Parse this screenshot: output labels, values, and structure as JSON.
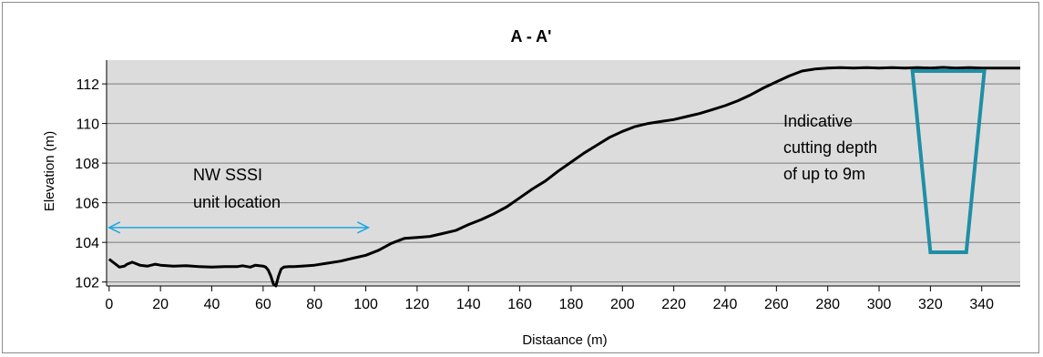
{
  "chart_data": {
    "type": "line",
    "title": "A - A'",
    "xlabel": "Distaance (m)",
    "ylabel": "Elevation (m)",
    "xlim": [
      -1,
      355
    ],
    "ylim": [
      101.8,
      113.2
    ],
    "x_ticks": [
      0,
      20,
      40,
      60,
      80,
      100,
      120,
      140,
      160,
      180,
      200,
      220,
      240,
      260,
      280,
      300,
      320,
      340
    ],
    "y_ticks": [
      102,
      104,
      106,
      108,
      110,
      112
    ],
    "grid": "horizontal",
    "background": "#dcdcdc",
    "line_color": "#000000",
    "series": [
      {
        "name": "",
        "x": [
          0,
          2,
          4,
          6,
          7,
          9,
          10,
          12,
          15,
          18,
          20,
          25,
          30,
          35,
          40,
          45,
          50,
          52,
          55,
          57,
          60,
          61,
          62,
          63,
          64,
          65,
          66,
          67,
          68,
          70,
          72,
          75,
          80,
          85,
          90,
          95,
          100,
          105,
          110,
          115,
          120,
          125,
          130,
          135,
          140,
          145,
          150,
          155,
          160,
          165,
          170,
          175,
          180,
          185,
          190,
          195,
          200,
          205,
          210,
          215,
          220,
          225,
          230,
          235,
          240,
          245,
          250,
          255,
          260,
          265,
          270,
          275,
          280,
          285,
          290,
          295,
          300,
          305,
          310,
          315,
          320,
          325,
          330,
          335,
          340,
          345,
          350,
          355
        ],
        "y": [
          103.15,
          102.95,
          102.75,
          102.8,
          102.9,
          103.0,
          102.95,
          102.85,
          102.8,
          102.9,
          102.85,
          102.8,
          102.82,
          102.78,
          102.75,
          102.78,
          102.78,
          102.82,
          102.75,
          102.85,
          102.8,
          102.75,
          102.6,
          102.3,
          101.9,
          101.8,
          102.3,
          102.65,
          102.75,
          102.78,
          102.78,
          102.8,
          102.85,
          102.95,
          103.05,
          103.2,
          103.35,
          103.6,
          103.95,
          104.2,
          104.25,
          104.3,
          104.45,
          104.6,
          104.9,
          105.15,
          105.45,
          105.8,
          106.25,
          106.7,
          107.1,
          107.6,
          108.05,
          108.5,
          108.9,
          109.3,
          109.6,
          109.85,
          110.0,
          110.1,
          110.2,
          110.35,
          110.5,
          110.7,
          110.9,
          111.15,
          111.45,
          111.8,
          112.1,
          112.4,
          112.65,
          112.75,
          112.8,
          112.82,
          112.8,
          112.82,
          112.8,
          112.82,
          112.8,
          112.82,
          112.8,
          112.83,
          112.8,
          112.82,
          112.8,
          112.8,
          112.8,
          112.8
        ]
      }
    ],
    "annotations": [
      {
        "text_lines": [
          "NW SSSI",
          "unit location"
        ],
        "arrow_from_x": 0,
        "arrow_to_x": 101,
        "arrow_y": 104.75,
        "color": "#1aa7e0"
      },
      {
        "text_lines": [
          "Indicative",
          "cutting depth",
          "of up to 9m"
        ],
        "color": "#1f8fa6",
        "trapezoid": {
          "top_left_x": 313,
          "top_right_x": 341,
          "top_y": 112.65,
          "bottom_left_x": 320,
          "bottom_right_x": 334,
          "bottom_y": 103.5
        }
      }
    ]
  }
}
